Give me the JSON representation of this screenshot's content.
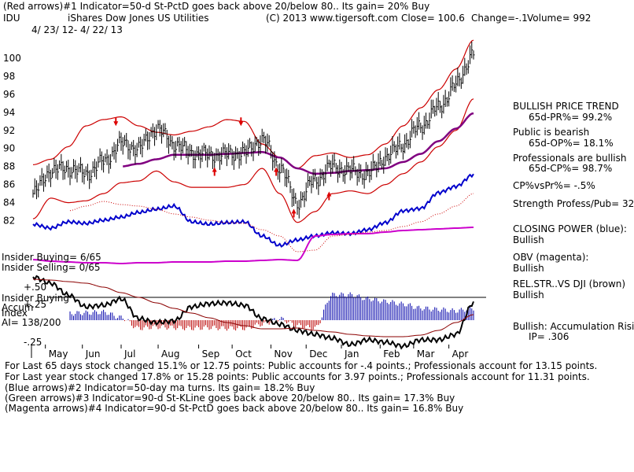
{
  "header": {
    "line1": "(Red arrows)#1 Indicator=50-d St-PctD goes back above 20/below 80.. Its gain= 20% Buy",
    "symbol": "IDU",
    "name": "iShares Dow Jones US Utilities",
    "copyright": "(C) 2013 www.tigersoft.com",
    "close": "Close=  100.6",
    "change": "Change=-.1",
    "volume": "Volume= 992",
    "date_range": "4/ 23/ 12-  4/ 22/ 13"
  },
  "right_panel": {
    "trend_title": "BULLISH PRICE TREND",
    "pr": "65d-PR%= 99.2%",
    "public_title": "Public is bearish",
    "op": "65d-OP%= 18.1%",
    "prof_title": "Professionals are bullish",
    "cp": "65d-CP%= 98.7%",
    "cpvspr": "CP%vsPr%= -.5%",
    "strength": "Strength Profess/Pub= 32",
    "closing_power": "CLOSING POWER (blue):",
    "closing_power_val": "Bullish",
    "obv": "OBV (magenta):",
    "obv_val": "Bullish",
    "relstr": "REL.STR..VS DJI (brown)",
    "relstr_val": "Bullish",
    "accum": "Bullish: Accumulation Risi",
    "ip": "IP=   .306"
  },
  "insider": {
    "buying": "Insider Buying= 6/65",
    "selling": "Insider Selling= 0/65",
    "buying2": "Insider Buying"
  },
  "accum_panel": {
    "label1": "Accum",
    "label2": "Index",
    "ai": "AI= 138/200"
  },
  "footer": {
    "line1": "For Last 65 days stock changed  15.1% or  12.75 points:  Public accounts for -.4 points.;  Professionals account for  13.15 points.",
    "line2": "For Last year stock changed  17.8% or  15.28 points:  Public accounts for  3.97 points.;  Professionals account for  11.31 points.",
    "line3": "(Blue arrows)#2 Indicator=50-day ma turns. Its gain= 18.2% Buy",
    "line4": "(Green arrows)#3 Indicator=90-d St-KLine goes back above 20/below 80.. Its gain= 17.3% Buy",
    "line5": "(Magenta arrows)#4 Indicator=90-d St-PctD goes back above 20/below 80.. Its gain= 16.8% Buy"
  },
  "colors": {
    "price": "#000000",
    "band": "#cc0000",
    "ma": "#800080",
    "cp": "#0000cc",
    "obv": "#cc00cc",
    "accum": "#0000aa",
    "accum_neg": "#bb0000",
    "relstr": "#8b0000"
  },
  "chart_data": {
    "type": "line",
    "title": "iShares Dow Jones US Utilities (IDU)",
    "ylim": [
      81,
      102
    ],
    "y_ticks": [
      "100",
      "98",
      "96",
      "94",
      "92",
      "90",
      "88",
      "86",
      "84",
      "82"
    ],
    "y_tick_values": [
      100,
      98,
      96,
      94,
      92,
      90,
      88,
      86,
      84,
      82
    ],
    "x_tick_labels": [
      "May",
      "Jun",
      "Jul",
      "Aug",
      "Sep",
      "Oct",
      "Nov",
      "Dec",
      "Jan",
      "Feb",
      "Mar",
      "Apr"
    ],
    "x": [
      0,
      10,
      20,
      30,
      40,
      50,
      60,
      70,
      80,
      90,
      100,
      110,
      120,
      130,
      140,
      150,
      160,
      170,
      180,
      190,
      200,
      210,
      220,
      230,
      240,
      250
    ],
    "month_starts": [
      7,
      28,
      50,
      71,
      94,
      113,
      135,
      155,
      175,
      197,
      216,
      236
    ],
    "series": [
      {
        "name": "Close",
        "values": [
          85.0,
          87.5,
          87.8,
          87.2,
          88.5,
          90.5,
          90.0,
          92.2,
          90.5,
          89.5,
          89.2,
          89.3,
          89.5,
          91.0,
          88.0,
          84.0,
          86.5,
          88.0,
          87.5,
          87.2,
          89.0,
          90.5,
          92.5,
          94.5,
          97.0,
          100.6
        ]
      },
      {
        "name": "Upper band",
        "values": [
          88.2,
          88.8,
          90.2,
          92.5,
          93.2,
          93.5,
          92.5,
          91.8,
          91.5,
          91.9,
          92.4,
          93.2,
          93.0,
          90.5,
          89.0,
          87.8,
          89.2,
          89.5,
          89.0,
          89.3,
          90.5,
          92.5,
          94.5,
          96.5,
          98.8,
          102.0
        ]
      },
      {
        "name": "Lower band",
        "values": [
          82.2,
          84.5,
          84.0,
          84.2,
          85.0,
          86.2,
          86.4,
          87.5,
          86.3,
          85.7,
          85.7,
          85.7,
          86.0,
          87.8,
          85.0,
          81.8,
          83.0,
          85.0,
          85.3,
          85.0,
          86.0,
          87.2,
          88.5,
          90.2,
          92.0,
          95.5
        ]
      },
      {
        "name": "50-day MA",
        "values": [
          null,
          null,
          null,
          null,
          null,
          88.0,
          88.3,
          88.8,
          89.3,
          89.3,
          89.3,
          89.4,
          89.5,
          89.6,
          89.0,
          87.8,
          87.2,
          87.3,
          87.5,
          87.6,
          87.8,
          88.5,
          89.4,
          90.8,
          92.2,
          93.9
        ]
      }
    ]
  }
}
